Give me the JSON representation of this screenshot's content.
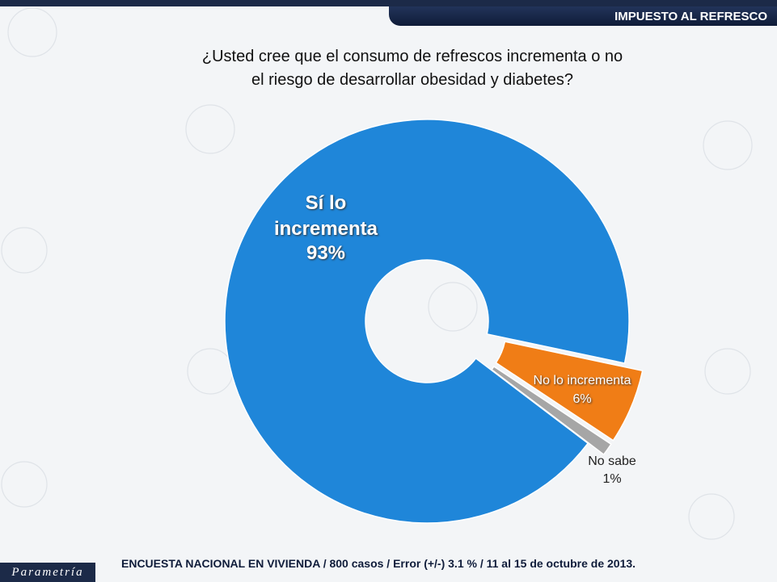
{
  "header": {
    "section": "IMPUESTO AL REFRESCO"
  },
  "chart_data": {
    "type": "pie",
    "title": "¿Usted cree que el consumo de refrescos incrementa o no el riesgo de desarrollar obesidad y diabetes?",
    "categories": [
      "Sí lo incrementa",
      "No lo incrementa",
      "No sabe"
    ],
    "values": [
      93,
      6,
      1
    ],
    "value_labels": [
      "93%",
      "6%",
      "1%"
    ],
    "colors": [
      "#1f86d9",
      "#f07d16",
      "#a6a6a6"
    ],
    "donut": true
  },
  "footer": {
    "note": "ENCUESTA NACIONAL EN VIVIENDA / 800 casos / Error (+/-) 3.1 % / 11 al 15 de octubre de 2013.",
    "logo": "Parametría"
  }
}
